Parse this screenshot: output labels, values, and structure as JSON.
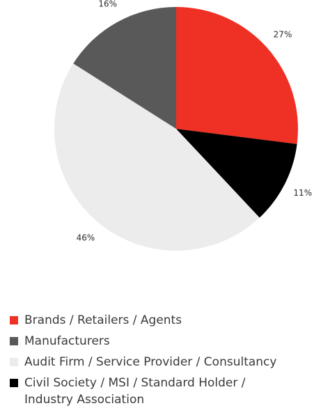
{
  "chart_data": {
    "type": "pie",
    "title": "",
    "start_angle_deg": 0,
    "direction": "clockwise",
    "slices": [
      {
        "label": "Brands / Retailers / Agents",
        "value": 27,
        "display": "27%",
        "color": "#ee3124"
      },
      {
        "label": "Civil Society / MSI / Standard Holder / Industry Association",
        "value": 11,
        "display": "11%",
        "color": "#000000"
      },
      {
        "label": "Audit Firm / Service Provider / Consultancy",
        "value": 46,
        "display": "46%",
        "color": "#ececec"
      },
      {
        "label": "Manufacturers",
        "value": 16,
        "display": "16%",
        "color": "#595959"
      }
    ],
    "legend_placement": "bottom",
    "legend": [
      {
        "label": "Brands / Retailers / Agents",
        "color": "#ee3124"
      },
      {
        "label": "Manufacturers",
        "color": "#595959"
      },
      {
        "label": "Audit Firm / Service Provider / Consultancy",
        "color": "#ececec"
      },
      {
        "label": "Civil Society / MSI / Standard Holder / Industry Association",
        "color": "#000000",
        "lines": [
          "Civil Society / MSI / Standard Holder /",
          "Industry Association"
        ]
      }
    ]
  }
}
